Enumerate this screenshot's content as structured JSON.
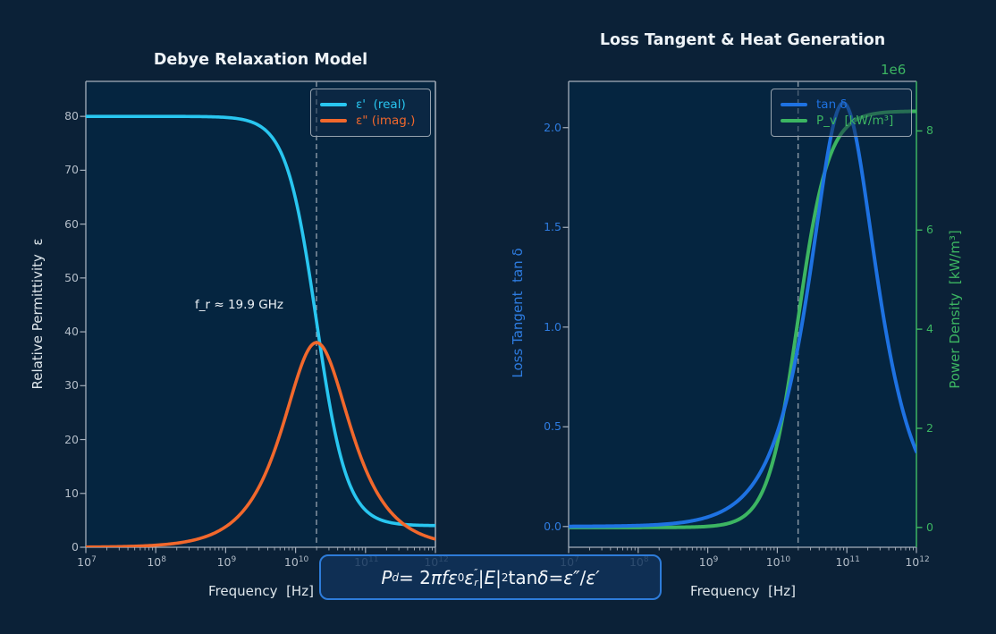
{
  "figure": {
    "bg_color": "#0b2137",
    "axes_bg_color": "#052540",
    "spine_color": "#a6b0bc",
    "tick_label_color": "#b3bdc8",
    "dashed_line_color": "#8d9aa7"
  },
  "chart_data": [
    {
      "type": "line",
      "title": "Debye Relaxation Model",
      "xlabel": "Frequency  [Hz]",
      "ylabel": "Relative Permittivity  ε",
      "xscale": "log",
      "xlim": [
        10000000.0,
        1000000000000.0
      ],
      "ylim": [
        0,
        86.5
      ],
      "x_tick_labels": [
        "10|7",
        "10|8",
        "10|9",
        "10|10",
        "10|11",
        "10|12"
      ],
      "y_ticks": [
        0,
        10,
        20,
        30,
        40,
        50,
        60,
        70,
        80
      ],
      "grid": false,
      "legend_position": "upper right",
      "series": [
        {
          "name": "ε'  (real)",
          "color": "#29c6f0"
        },
        {
          "name": "ε\" (imag.)",
          "color": "#f2682c"
        }
      ],
      "model_params": {
        "eps_static": 80,
        "eps_inf": 4,
        "f_r_hz": 19900000000.0
      },
      "samples": {
        "log10_f": [
          7,
          8,
          9,
          9.5,
          10,
          10.3,
          10.6,
          11,
          11.5,
          12
        ],
        "eps_real": [
          80.0,
          80.0,
          79.8,
          78.2,
          64.7,
          41.9,
          19.0,
          6.9,
          4.3,
          4.0
        ],
        "eps_imag": [
          0.0,
          0.4,
          3.8,
          11.8,
          30.5,
          38.0,
          30.2,
          14.6,
          4.8,
          1.5
        ]
      },
      "annotation": {
        "text": "f_r ≈ 19.9 GHz"
      },
      "vline_f_hz": 19900000000.0
    },
    {
      "type": "line",
      "title": "Loss Tangent & Heat Generation",
      "xlabel": "Frequency  [Hz]",
      "ylabel_left": "Loss Tangent  tan δ",
      "ylabel_right": "Power Density  [kW/m³]",
      "ylabel_left_color": "#2e7ce0",
      "ylabel_right_color": "#3cb562",
      "offset_text": "1e6",
      "xscale": "log",
      "xlim": [
        10000000.0,
        1000000000000.0
      ],
      "ylim_left": [
        -0.104,
        2.232
      ],
      "ylim_right_1e6": [
        -0.4,
        9.0
      ],
      "x_tick_labels": [
        "10|7",
        "10|8",
        "10|9",
        "10|10",
        "10|11",
        "10|12"
      ],
      "y_ticks_left": [
        "0.0",
        "0.5",
        "1.0",
        "1.5",
        "2.0"
      ],
      "y_tick_values_left": [
        0,
        0.5,
        1.0,
        1.5,
        2.0
      ],
      "y_ticks_right": [
        "0",
        "2",
        "4",
        "6",
        "8"
      ],
      "y_tick_values_right": [
        0,
        2,
        4,
        6,
        8
      ],
      "grid": false,
      "legend_position": "upper right",
      "series": [
        {
          "name": "tan δ",
          "color": "#1e72e2"
        },
        {
          "name": "P_v  [kW/m³]",
          "color": "#3cb562"
        }
      ],
      "model_params": {
        "eps_static": 80,
        "eps_inf": 4,
        "f_r_hz": 19900000000.0,
        "p_v_plateau_kw_m3": 8400000.0
      },
      "samples": {
        "log10_f": [
          7,
          8,
          9,
          9.5,
          10,
          10.3,
          10.6,
          11,
          11.5,
          12
        ],
        "tan_delta": [
          0.0,
          0.005,
          0.048,
          0.151,
          0.471,
          0.907,
          1.587,
          2.11,
          1.109,
          0.375
        ],
        "P_v_1e6_kw_m3": [
          0.0,
          0.0002,
          0.021,
          0.205,
          1.68,
          4.19,
          6.69,
          8.03,
          8.32,
          8.35
        ]
      },
      "vline_f_hz": 19900000000.0
    }
  ],
  "formula_box": {
    "segments": [
      {
        "t": "P",
        "s": "it"
      },
      {
        "t": "d",
        "s": "subit"
      },
      {
        "t": " = 2",
        "s": "n"
      },
      {
        "t": "πf",
        "s": "it"
      },
      {
        "t": " ",
        "s": "n"
      },
      {
        "t": "ε",
        "s": "it"
      },
      {
        "t": "0",
        "s": "sub"
      },
      {
        "t": " ",
        "s": "n"
      },
      {
        "t": "ε",
        "s": "it"
      },
      {
        "t": "″|r",
        "s": "stack"
      },
      {
        "t": " |E|",
        "s": "it"
      },
      {
        "t": "2",
        "s": "sup"
      },
      {
        "t": "        ",
        "s": "n"
      },
      {
        "t": "tan ",
        "s": "n"
      },
      {
        "t": "δ",
        "s": "it"
      },
      {
        "t": " = ",
        "s": "n"
      },
      {
        "t": "ε″",
        "s": "it"
      },
      {
        "t": "/",
        "s": "n"
      },
      {
        "t": "ε′",
        "s": "it"
      }
    ]
  }
}
